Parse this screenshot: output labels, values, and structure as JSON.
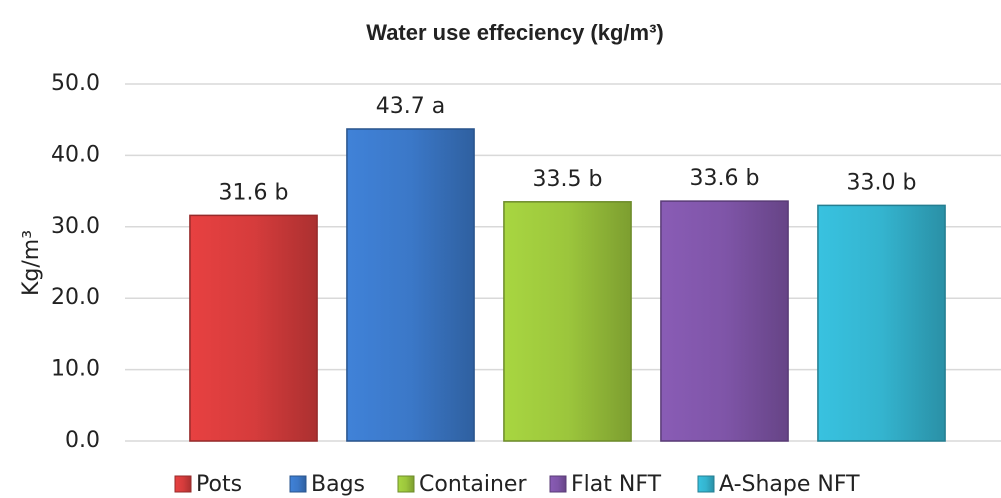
{
  "chart_data": {
    "type": "bar",
    "title": "Water use effeciency (kg/m³)",
    "y_label": "Kg/m³",
    "categories": [
      "Pots",
      "Bags",
      "Container",
      "Flat NFT",
      "A-Shape NFT"
    ],
    "values": [
      31.6,
      43.7,
      33.5,
      33.6,
      33.0
    ],
    "value_labels": [
      "31.6 b",
      "43.7 a",
      "33.5 b",
      "33.6 b",
      "33.0 b"
    ],
    "colors": [
      "#d63c3c",
      "#3b78c8",
      "#9cc63c",
      "#7f55a8",
      "#34b4cf"
    ],
    "ylim": [
      0,
      50
    ],
    "yticks": [
      {
        "value": 0,
        "label": "0.0"
      },
      {
        "value": 10,
        "label": "10.0"
      },
      {
        "value": 20,
        "label": "20.0"
      },
      {
        "value": 30,
        "label": "30.0"
      },
      {
        "value": 40,
        "label": "40.0"
      },
      {
        "value": 50,
        "label": "50.0"
      }
    ],
    "grid": true,
    "legend": "bottom"
  }
}
